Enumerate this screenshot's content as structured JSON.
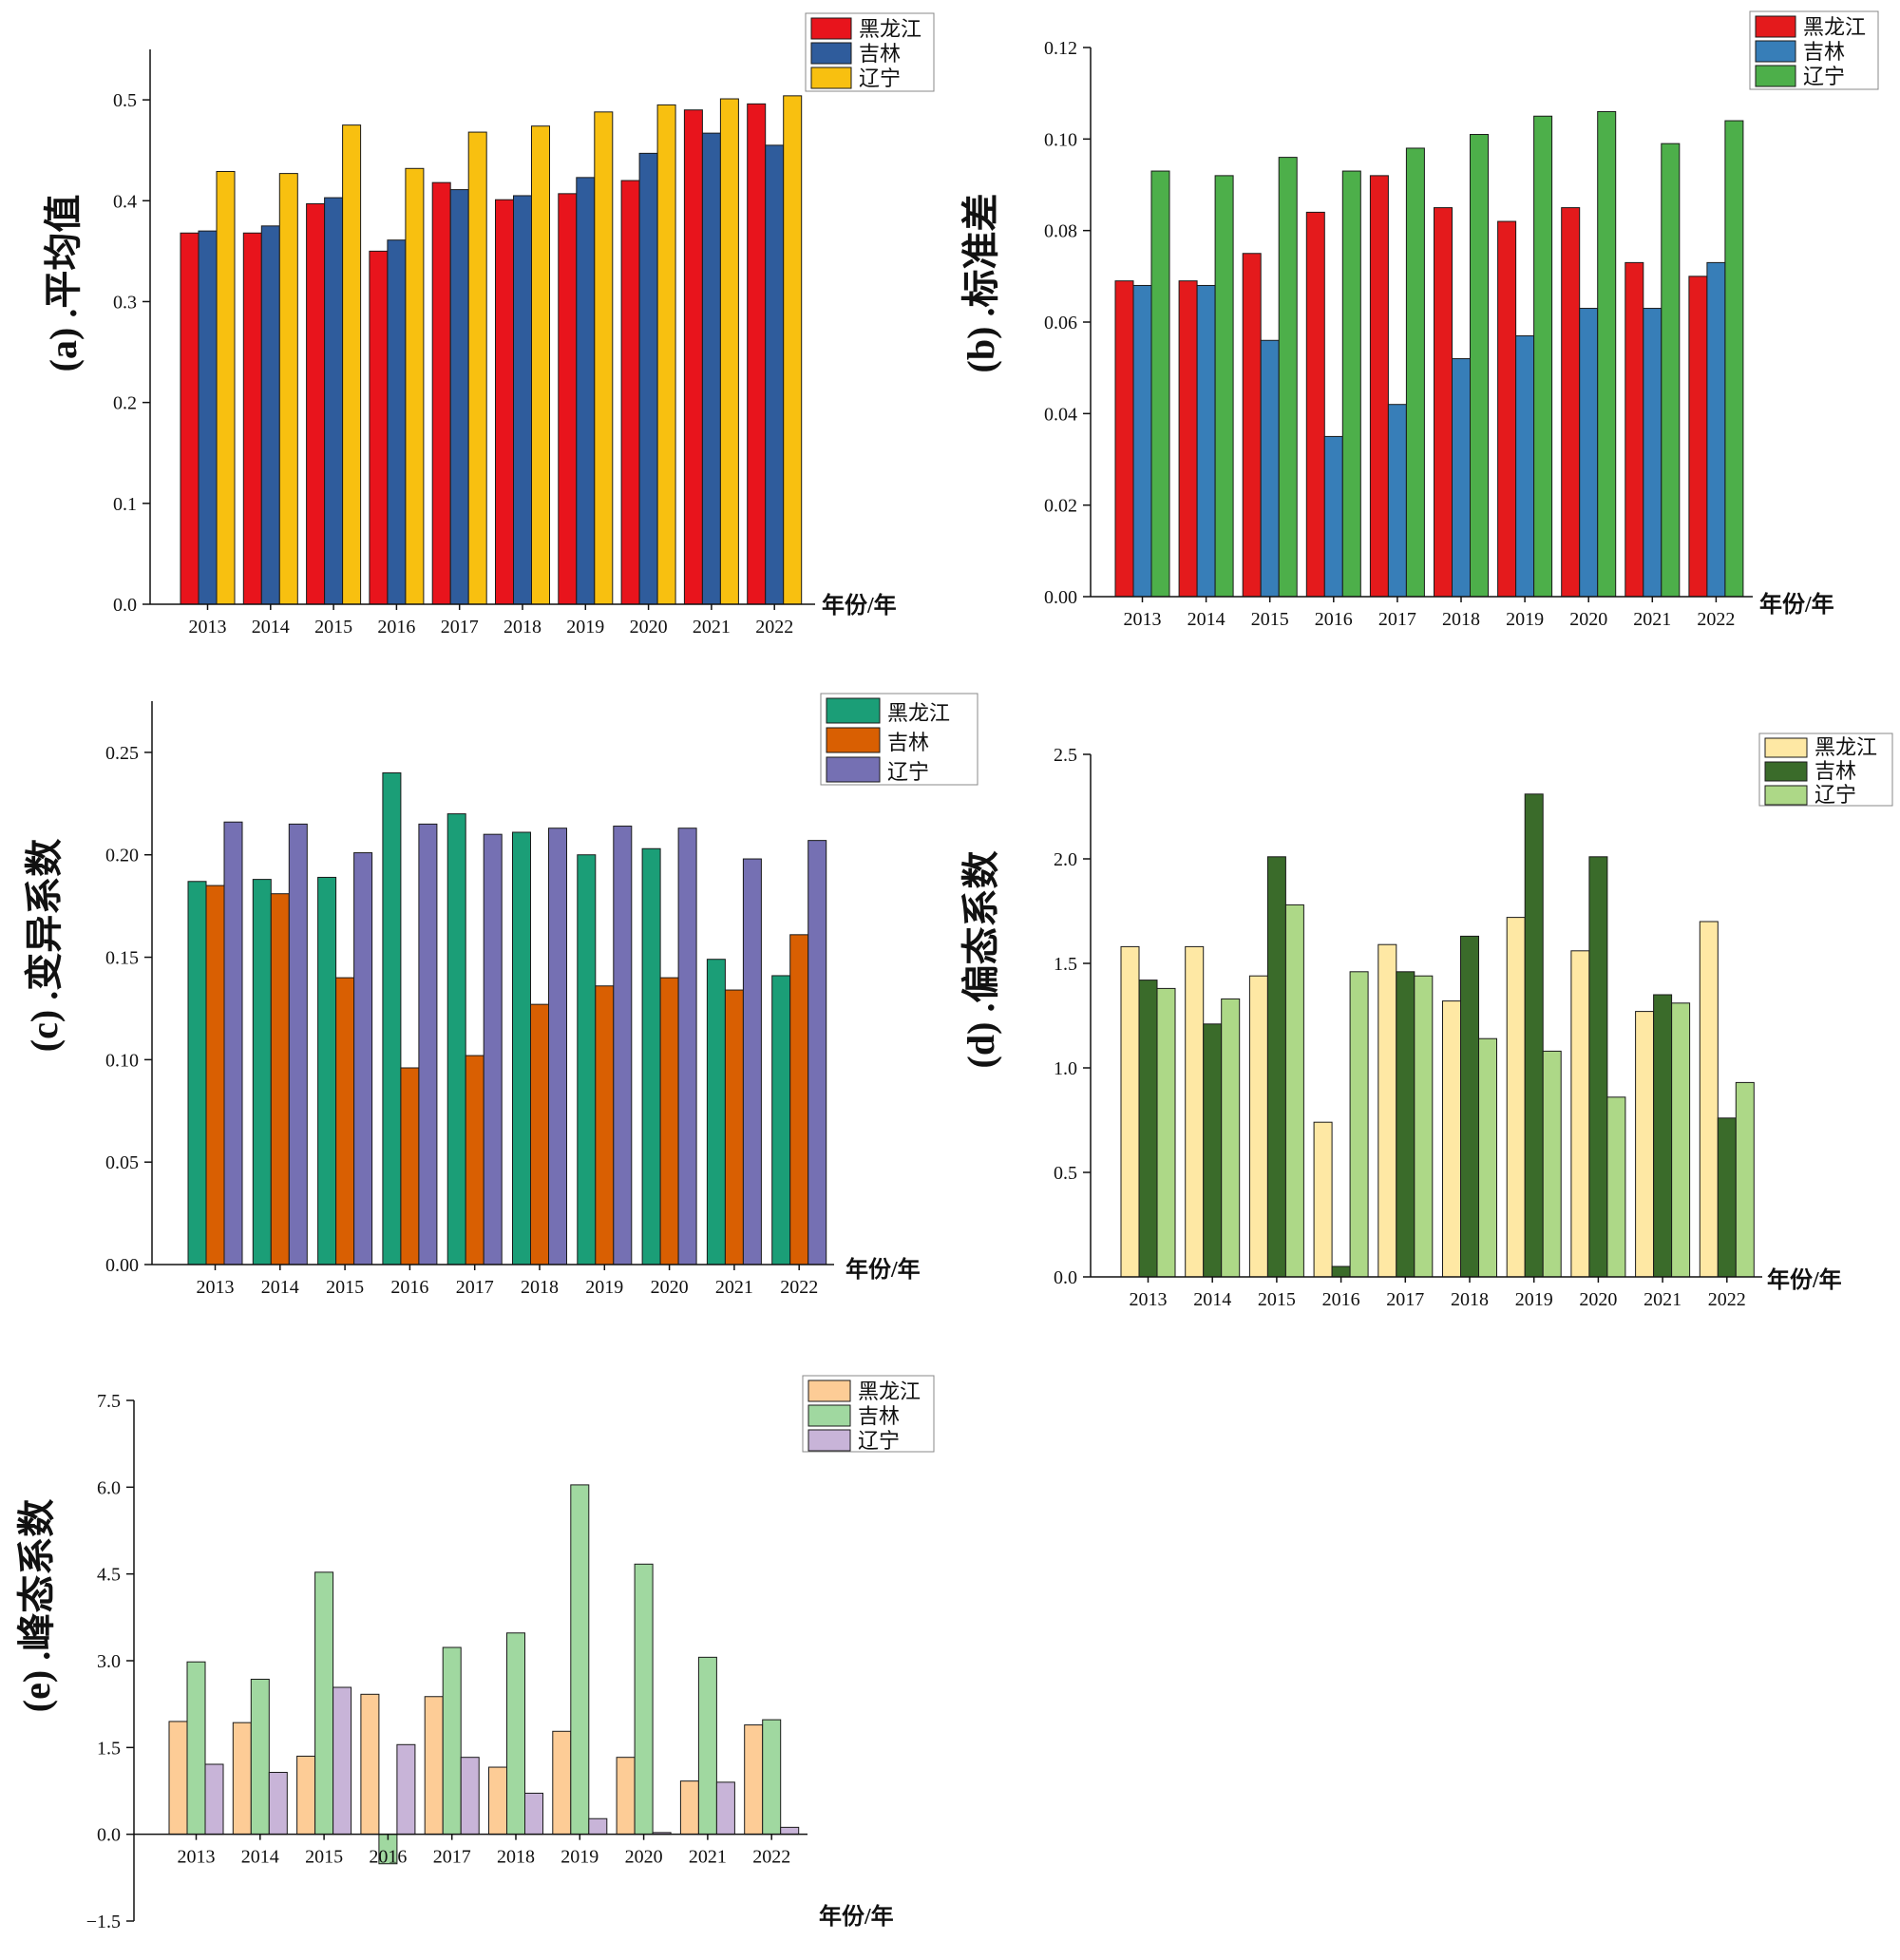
{
  "chart_data": [
    {
      "id": "a",
      "type": "bar",
      "ylabel": "(a) .平均值",
      "xunit": "年份/年",
      "categories": [
        "2013",
        "2014",
        "2015",
        "2016",
        "2017",
        "2018",
        "2019",
        "2020",
        "2021",
        "2022"
      ],
      "ylim": [
        0,
        0.55
      ],
      "yticks": [
        0.0,
        0.1,
        0.2,
        0.3,
        0.4,
        0.5
      ],
      "tick_decimals": 1,
      "series": [
        {
          "name": "黑龙江",
          "color": "#e8141c",
          "values": [
            0.368,
            0.368,
            0.397,
            0.35,
            0.418,
            0.401,
            0.407,
            0.42,
            0.49,
            0.496
          ]
        },
        {
          "name": "吉林",
          "color": "#2f5c9c",
          "values": [
            0.37,
            0.375,
            0.403,
            0.361,
            0.411,
            0.405,
            0.423,
            0.447,
            0.467,
            0.455
          ]
        },
        {
          "name": "辽宁",
          "color": "#f8c010",
          "values": [
            0.429,
            0.427,
            0.475,
            0.432,
            0.468,
            0.474,
            0.488,
            0.495,
            0.501,
            0.504
          ]
        }
      ]
    },
    {
      "id": "b",
      "type": "bar",
      "ylabel": "(b) .标准差",
      "xunit": "年份/年",
      "categories": [
        "2013",
        "2014",
        "2015",
        "2016",
        "2017",
        "2018",
        "2019",
        "2020",
        "2021",
        "2022"
      ],
      "ylim": [
        0,
        0.12
      ],
      "yticks": [
        0.0,
        0.02,
        0.04,
        0.06,
        0.08,
        0.1,
        0.12
      ],
      "tick_decimals": 2,
      "series": [
        {
          "name": "黑龙江",
          "color": "#e41a1c",
          "values": [
            0.069,
            0.069,
            0.075,
            0.084,
            0.092,
            0.085,
            0.082,
            0.085,
            0.073,
            0.07
          ]
        },
        {
          "name": "吉林",
          "color": "#377eb8",
          "values": [
            0.068,
            0.068,
            0.056,
            0.035,
            0.042,
            0.052,
            0.057,
            0.063,
            0.063,
            0.073
          ]
        },
        {
          "name": "辽宁",
          "color": "#4daf4a",
          "values": [
            0.093,
            0.092,
            0.096,
            0.093,
            0.098,
            0.101,
            0.105,
            0.106,
            0.099,
            0.104
          ]
        }
      ]
    },
    {
      "id": "c",
      "type": "bar",
      "ylabel": "(c) .变异系数",
      "xunit": "年份/年",
      "categories": [
        "2013",
        "2014",
        "2015",
        "2016",
        "2017",
        "2018",
        "2019",
        "2020",
        "2021",
        "2022"
      ],
      "ylim": [
        0,
        0.275
      ],
      "yticks": [
        0.0,
        0.05,
        0.1,
        0.15,
        0.2,
        0.25
      ],
      "tick_decimals": 2,
      "series": [
        {
          "name": "黑龙江",
          "color": "#1b9e77",
          "values": [
            0.187,
            0.188,
            0.189,
            0.24,
            0.22,
            0.211,
            0.2,
            0.203,
            0.149,
            0.141
          ]
        },
        {
          "name": "吉林",
          "color": "#d95f02",
          "values": [
            0.185,
            0.181,
            0.14,
            0.096,
            0.102,
            0.127,
            0.136,
            0.14,
            0.134,
            0.161
          ]
        },
        {
          "name": "辽宁",
          "color": "#7570b3",
          "values": [
            0.216,
            0.215,
            0.201,
            0.215,
            0.21,
            0.213,
            0.214,
            0.213,
            0.198,
            0.207
          ]
        }
      ]
    },
    {
      "id": "d",
      "type": "bar",
      "ylabel": "(d) .偏态系数",
      "xunit": "年份/年",
      "categories": [
        "2013",
        "2014",
        "2015",
        "2016",
        "2017",
        "2018",
        "2019",
        "2020",
        "2021",
        "2022"
      ],
      "ylim": [
        0,
        2.5
      ],
      "yticks": [
        0.0,
        0.5,
        1.0,
        1.5,
        2.0,
        2.5
      ],
      "tick_decimals": 1,
      "series": [
        {
          "name": "黑龙江",
          "color": "#fee8a4",
          "values": [
            1.58,
            1.58,
            1.44,
            0.74,
            1.59,
            1.32,
            1.72,
            1.56,
            1.27,
            1.7
          ]
        },
        {
          "name": "吉林",
          "color": "#3a6b2a",
          "values": [
            1.42,
            1.21,
            2.01,
            0.05,
            1.46,
            1.63,
            2.31,
            2.01,
            1.35,
            0.76
          ]
        },
        {
          "name": "辽宁",
          "color": "#add887",
          "values": [
            1.38,
            1.33,
            1.78,
            1.46,
            1.44,
            1.14,
            1.08,
            0.86,
            1.31,
            0.93
          ]
        }
      ]
    },
    {
      "id": "e",
      "type": "bar",
      "ylabel": "(e) .峰态系数",
      "xunit": "年份/年",
      "categories": [
        "2013",
        "2014",
        "2015",
        "2016",
        "2017",
        "2018",
        "2019",
        "2020",
        "2021",
        "2022"
      ],
      "ylim": [
        -1.5,
        7.5
      ],
      "yticks": [
        -1.5,
        0.0,
        1.5,
        3.0,
        4.5,
        6.0,
        7.5
      ],
      "tick_decimals": 1,
      "series": [
        {
          "name": "黑龙江",
          "color": "#fdcc96",
          "values": [
            1.95,
            1.93,
            1.35,
            2.42,
            2.38,
            1.16,
            1.78,
            1.33,
            0.92,
            1.89
          ]
        },
        {
          "name": "吉林",
          "color": "#a0d8a0",
          "values": [
            2.98,
            2.68,
            4.53,
            -0.51,
            3.23,
            3.48,
            6.04,
            4.67,
            3.06,
            1.98
          ]
        },
        {
          "name": "辽宁",
          "color": "#c8b4d8",
          "values": [
            1.21,
            1.07,
            2.54,
            1.55,
            1.33,
            0.71,
            0.27,
            0.03,
            0.9,
            0.12
          ]
        }
      ]
    }
  ]
}
